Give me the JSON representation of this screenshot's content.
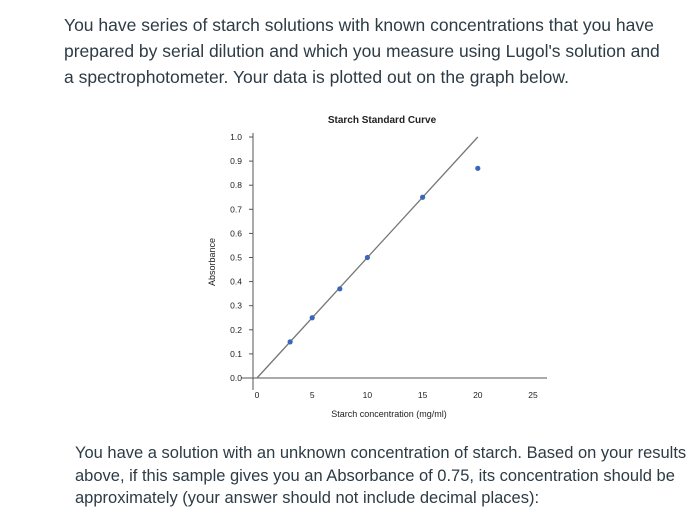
{
  "question": {
    "intro": "You have series of starch solutions with known concentrations that you have prepared by serial dilution and which you measure using Lugol's solution and a spectrophotometer. Your data is plotted out on the graph below.",
    "followup": "You have a solution with an unknown concentration of starch. Based on your results above, if this sample gives you an Absorbance of 0.75, its concentration should be approximately (your answer should not include decimal places):"
  },
  "chart_data": {
    "type": "scatter",
    "title": "Starch Standard Curve",
    "xlabel": "Starch concentration (mg/ml)",
    "ylabel": "Absorbance",
    "xlim": [
      0,
      25
    ],
    "ylim": [
      0,
      1.0
    ],
    "x_ticks": [
      "0",
      "5",
      "10",
      "15",
      "20",
      "25"
    ],
    "y_ticks": [
      "0.0",
      "0.1",
      "0.2",
      "0.3",
      "0.4",
      "0.5",
      "0.6",
      "0.7",
      "0.8",
      "0.9",
      "1.0"
    ],
    "series": [
      {
        "points": [
          [
            3,
            0.15
          ],
          [
            5,
            0.25
          ],
          [
            7.5,
            0.37
          ],
          [
            10,
            0.5
          ],
          [
            15,
            0.75
          ],
          [
            20,
            0.87
          ]
        ]
      }
    ],
    "trendline": {
      "x": [
        0,
        20
      ],
      "y": [
        0,
        1.0
      ]
    },
    "colors": {
      "point": "#3a67b8",
      "line": "#777777",
      "axis": "#555555"
    }
  }
}
